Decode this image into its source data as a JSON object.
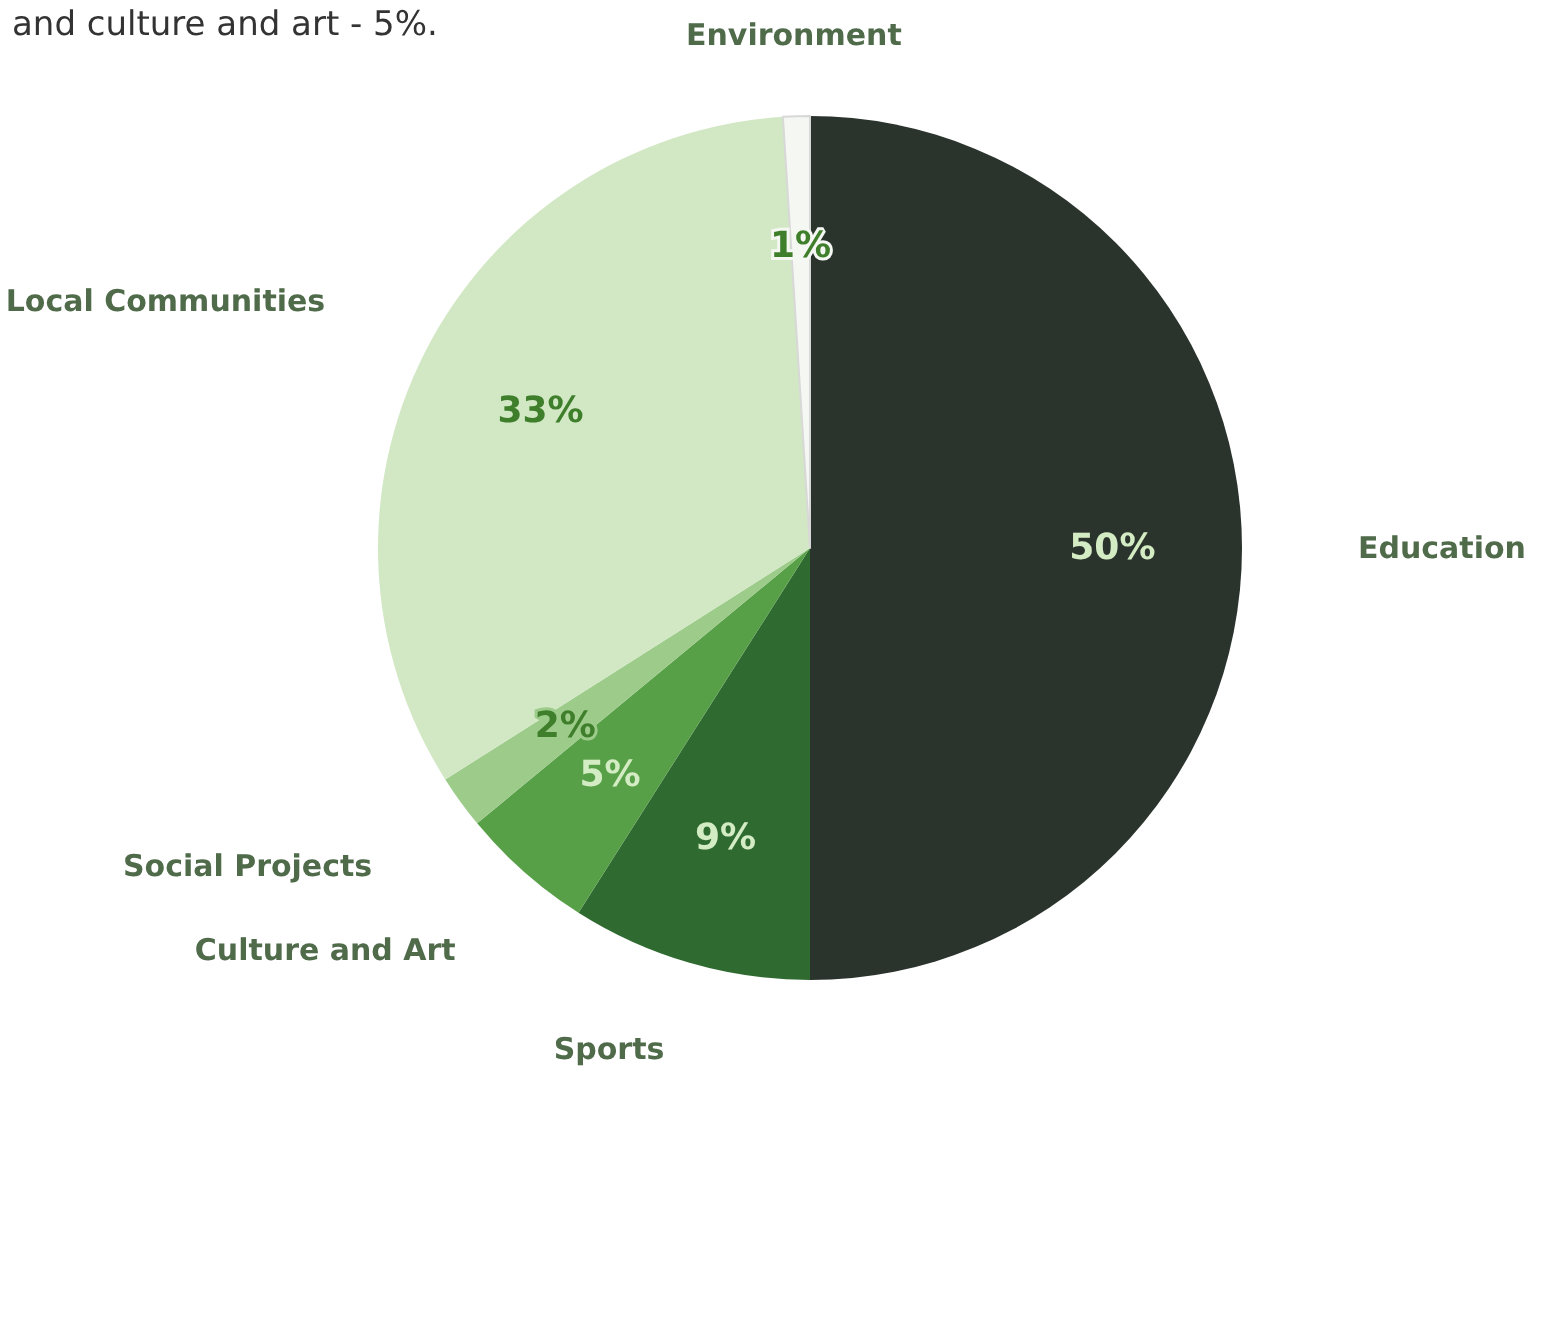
{
  "chart_data": {
    "type": "pie",
    "annotations": [
      "and culture and art - 5%."
    ],
    "categories": [
      "Education",
      "Sports",
      "Culture and Art",
      "Social Projects",
      "Local Communities",
      "Environment"
    ],
    "values": [
      50,
      9,
      5,
      2,
      33,
      1
    ],
    "colors": [
      "#2b332d",
      "#2f6a30",
      "#58a048",
      "#9ccb8a",
      "#d2e8c4",
      "#f4f7f2"
    ],
    "value_labels": [
      "50%",
      "9%",
      "5%",
      "2%",
      "33%",
      "1%"
    ],
    "legend": false
  }
}
